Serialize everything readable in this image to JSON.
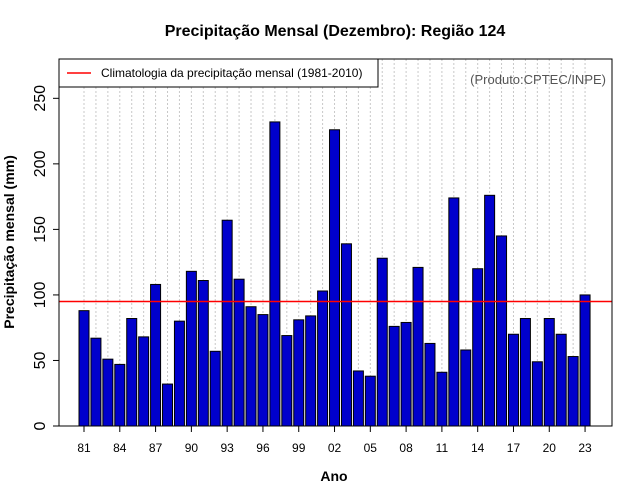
{
  "chart_data": {
    "type": "bar",
    "title": "Precipitação Mensal (Dezembro): Região 124",
    "xlabel": "Ano",
    "ylabel": "Precipitação mensal (mm)",
    "ylim": [
      0,
      280
    ],
    "yticks": [
      0,
      50,
      100,
      150,
      200,
      250
    ],
    "years": [
      1981,
      1982,
      1983,
      1984,
      1985,
      1986,
      1987,
      1988,
      1989,
      1990,
      1991,
      1992,
      1993,
      1994,
      1995,
      1996,
      1997,
      1998,
      1999,
      2000,
      2001,
      2002,
      2003,
      2004,
      2005,
      2006,
      2007,
      2008,
      2009,
      2010,
      2011,
      2012,
      2013,
      2014,
      2015,
      2016,
      2017,
      2018,
      2019,
      2020,
      2021,
      2022,
      2023
    ],
    "values": [
      88,
      67,
      51,
      47,
      82,
      68,
      108,
      32,
      80,
      118,
      111,
      57,
      157,
      112,
      91,
      85,
      232,
      69,
      81,
      84,
      103,
      226,
      139,
      42,
      38,
      128,
      76,
      79,
      121,
      63,
      41,
      174,
      58,
      120,
      176,
      145,
      70,
      82,
      49,
      82,
      70,
      53,
      100
    ],
    "tick_labels": [
      "81",
      "84",
      "87",
      "90",
      "93",
      "96",
      "99",
      "02",
      "05",
      "08",
      "11",
      "14",
      "17",
      "20",
      "23"
    ],
    "tick_indices": [
      0,
      3,
      6,
      9,
      12,
      15,
      18,
      21,
      24,
      27,
      30,
      33,
      36,
      39,
      42
    ],
    "climatology": 95,
    "legend": "Climatologia da precipitação mensal (1981-2010)",
    "product": "(Produto:CPTEC/INPE)",
    "bar_color": "#0000cc",
    "bar_edge": "#000000",
    "climatology_color": "#ff0000",
    "grid_color": "#c8c8c8"
  }
}
